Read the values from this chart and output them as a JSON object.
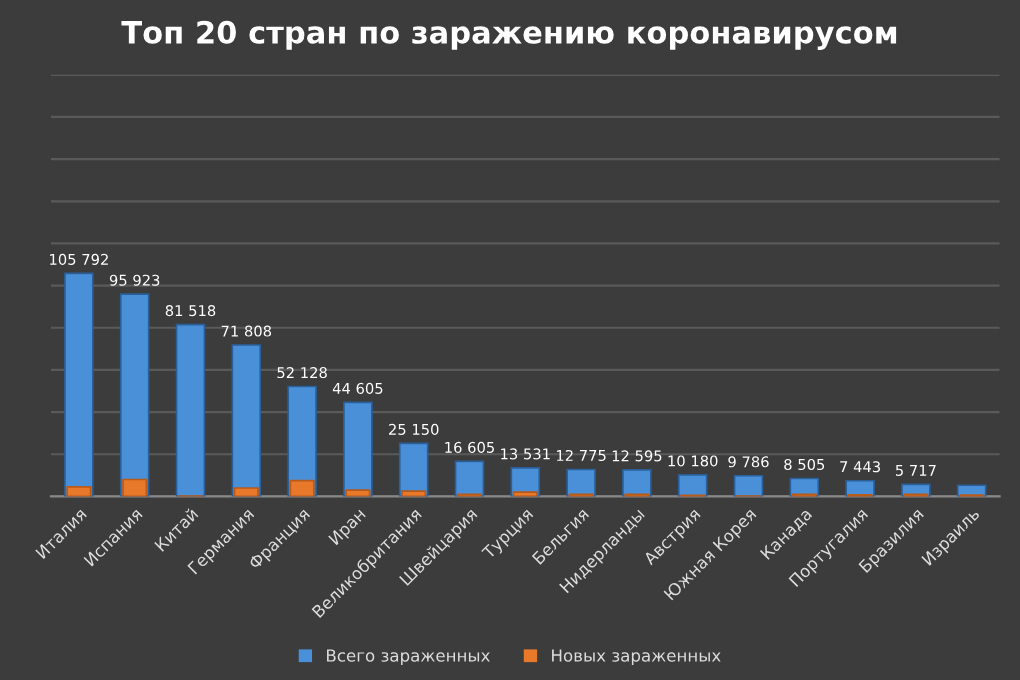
{
  "chart_data": {
    "type": "bar",
    "title": "Топ 20 стран по заражению коронавирусом",
    "categories": [
      "Италия",
      "Испания",
      "Китай",
      "Германия",
      "Франция",
      "Иран",
      "Великобритания",
      "Швейцария",
      "Турция",
      "Бельгия",
      "Нидерланды",
      "Австрия",
      "Южная Корея",
      "Канада",
      "Португалия",
      "Бразилия",
      "Израиль"
    ],
    "series": [
      {
        "name": "Всего зараженных",
        "color": "#4a90d9",
        "values": [
          105792,
          95923,
          81518,
          71808,
          52128,
          44605,
          25150,
          16605,
          13531,
          12775,
          12595,
          10180,
          9786,
          8505,
          7443,
          5717,
          5300
        ],
        "value_labels": [
          "105 792",
          "95 923",
          "81 518",
          "71 808",
          "52 128",
          "44 605",
          "25 150",
          "16 605",
          "13 531",
          "12 775",
          "12 595",
          "10 180",
          "9 786",
          "8 505",
          "7 443",
          "5 717",
          null
        ]
      },
      {
        "name": "Новых зараженных",
        "color": "#e8782a",
        "values": [
          4500,
          8000,
          100,
          4000,
          7500,
          3000,
          2500,
          1000,
          2000,
          1000,
          1000,
          500,
          100,
          1000,
          800,
          1000,
          600
        ]
      }
    ],
    "ylim": [
      0,
      200000
    ],
    "yticks": [
      {
        "value": 0,
        "label": null
      },
      {
        "value": 20000,
        "label": null
      },
      {
        "value": 40000,
        "label": null
      },
      {
        "value": 60000,
        "label": null
      },
      {
        "value": 80000,
        "label": null
      },
      {
        "value": 100000,
        "label": null
      },
      {
        "value": 120000,
        "label": null
      },
      {
        "value": 140000,
        "label": null
      },
      {
        "value": 160000,
        "label": null
      },
      {
        "value": 180000,
        "label": null
      },
      {
        "value": 200000,
        "label": null
      }
    ],
    "grid": "y",
    "legend": "bottom",
    "tick_labels": "x"
  }
}
